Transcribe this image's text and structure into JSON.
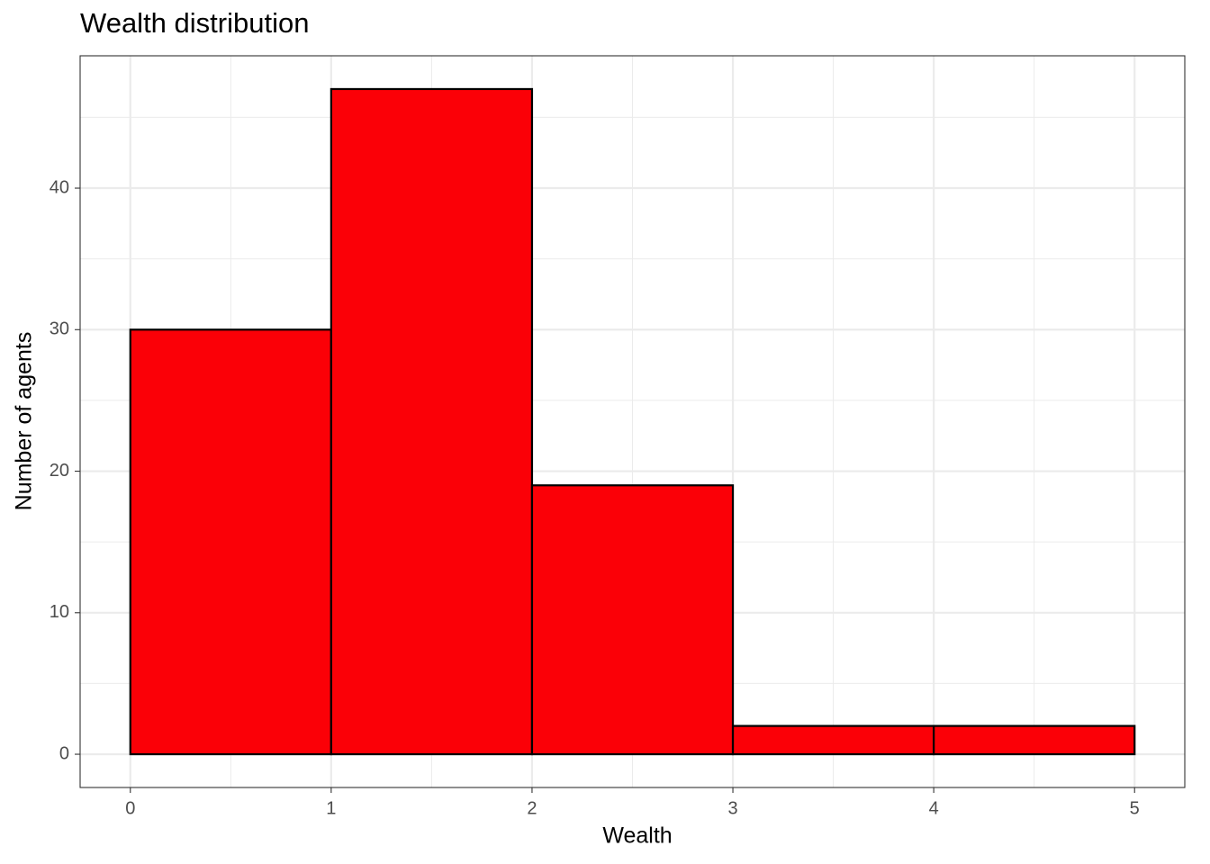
{
  "chart_data": {
    "type": "histogram",
    "title": "Wealth distribution",
    "x_label": "Wealth",
    "y_label": "Number of agents",
    "bins": [
      0,
      1,
      2,
      3,
      4,
      5
    ],
    "values": [
      30,
      47,
      19,
      2,
      2
    ],
    "color": "#fb0007",
    "edgecolor": "#000000",
    "xlim": [
      -0.25,
      5.25
    ],
    "ylim": [
      -2.35,
      49.35
    ],
    "xticks": [
      0,
      1,
      2,
      3,
      4,
      5
    ],
    "yticks": [
      0,
      10,
      20,
      30,
      40
    ],
    "grid": true
  }
}
